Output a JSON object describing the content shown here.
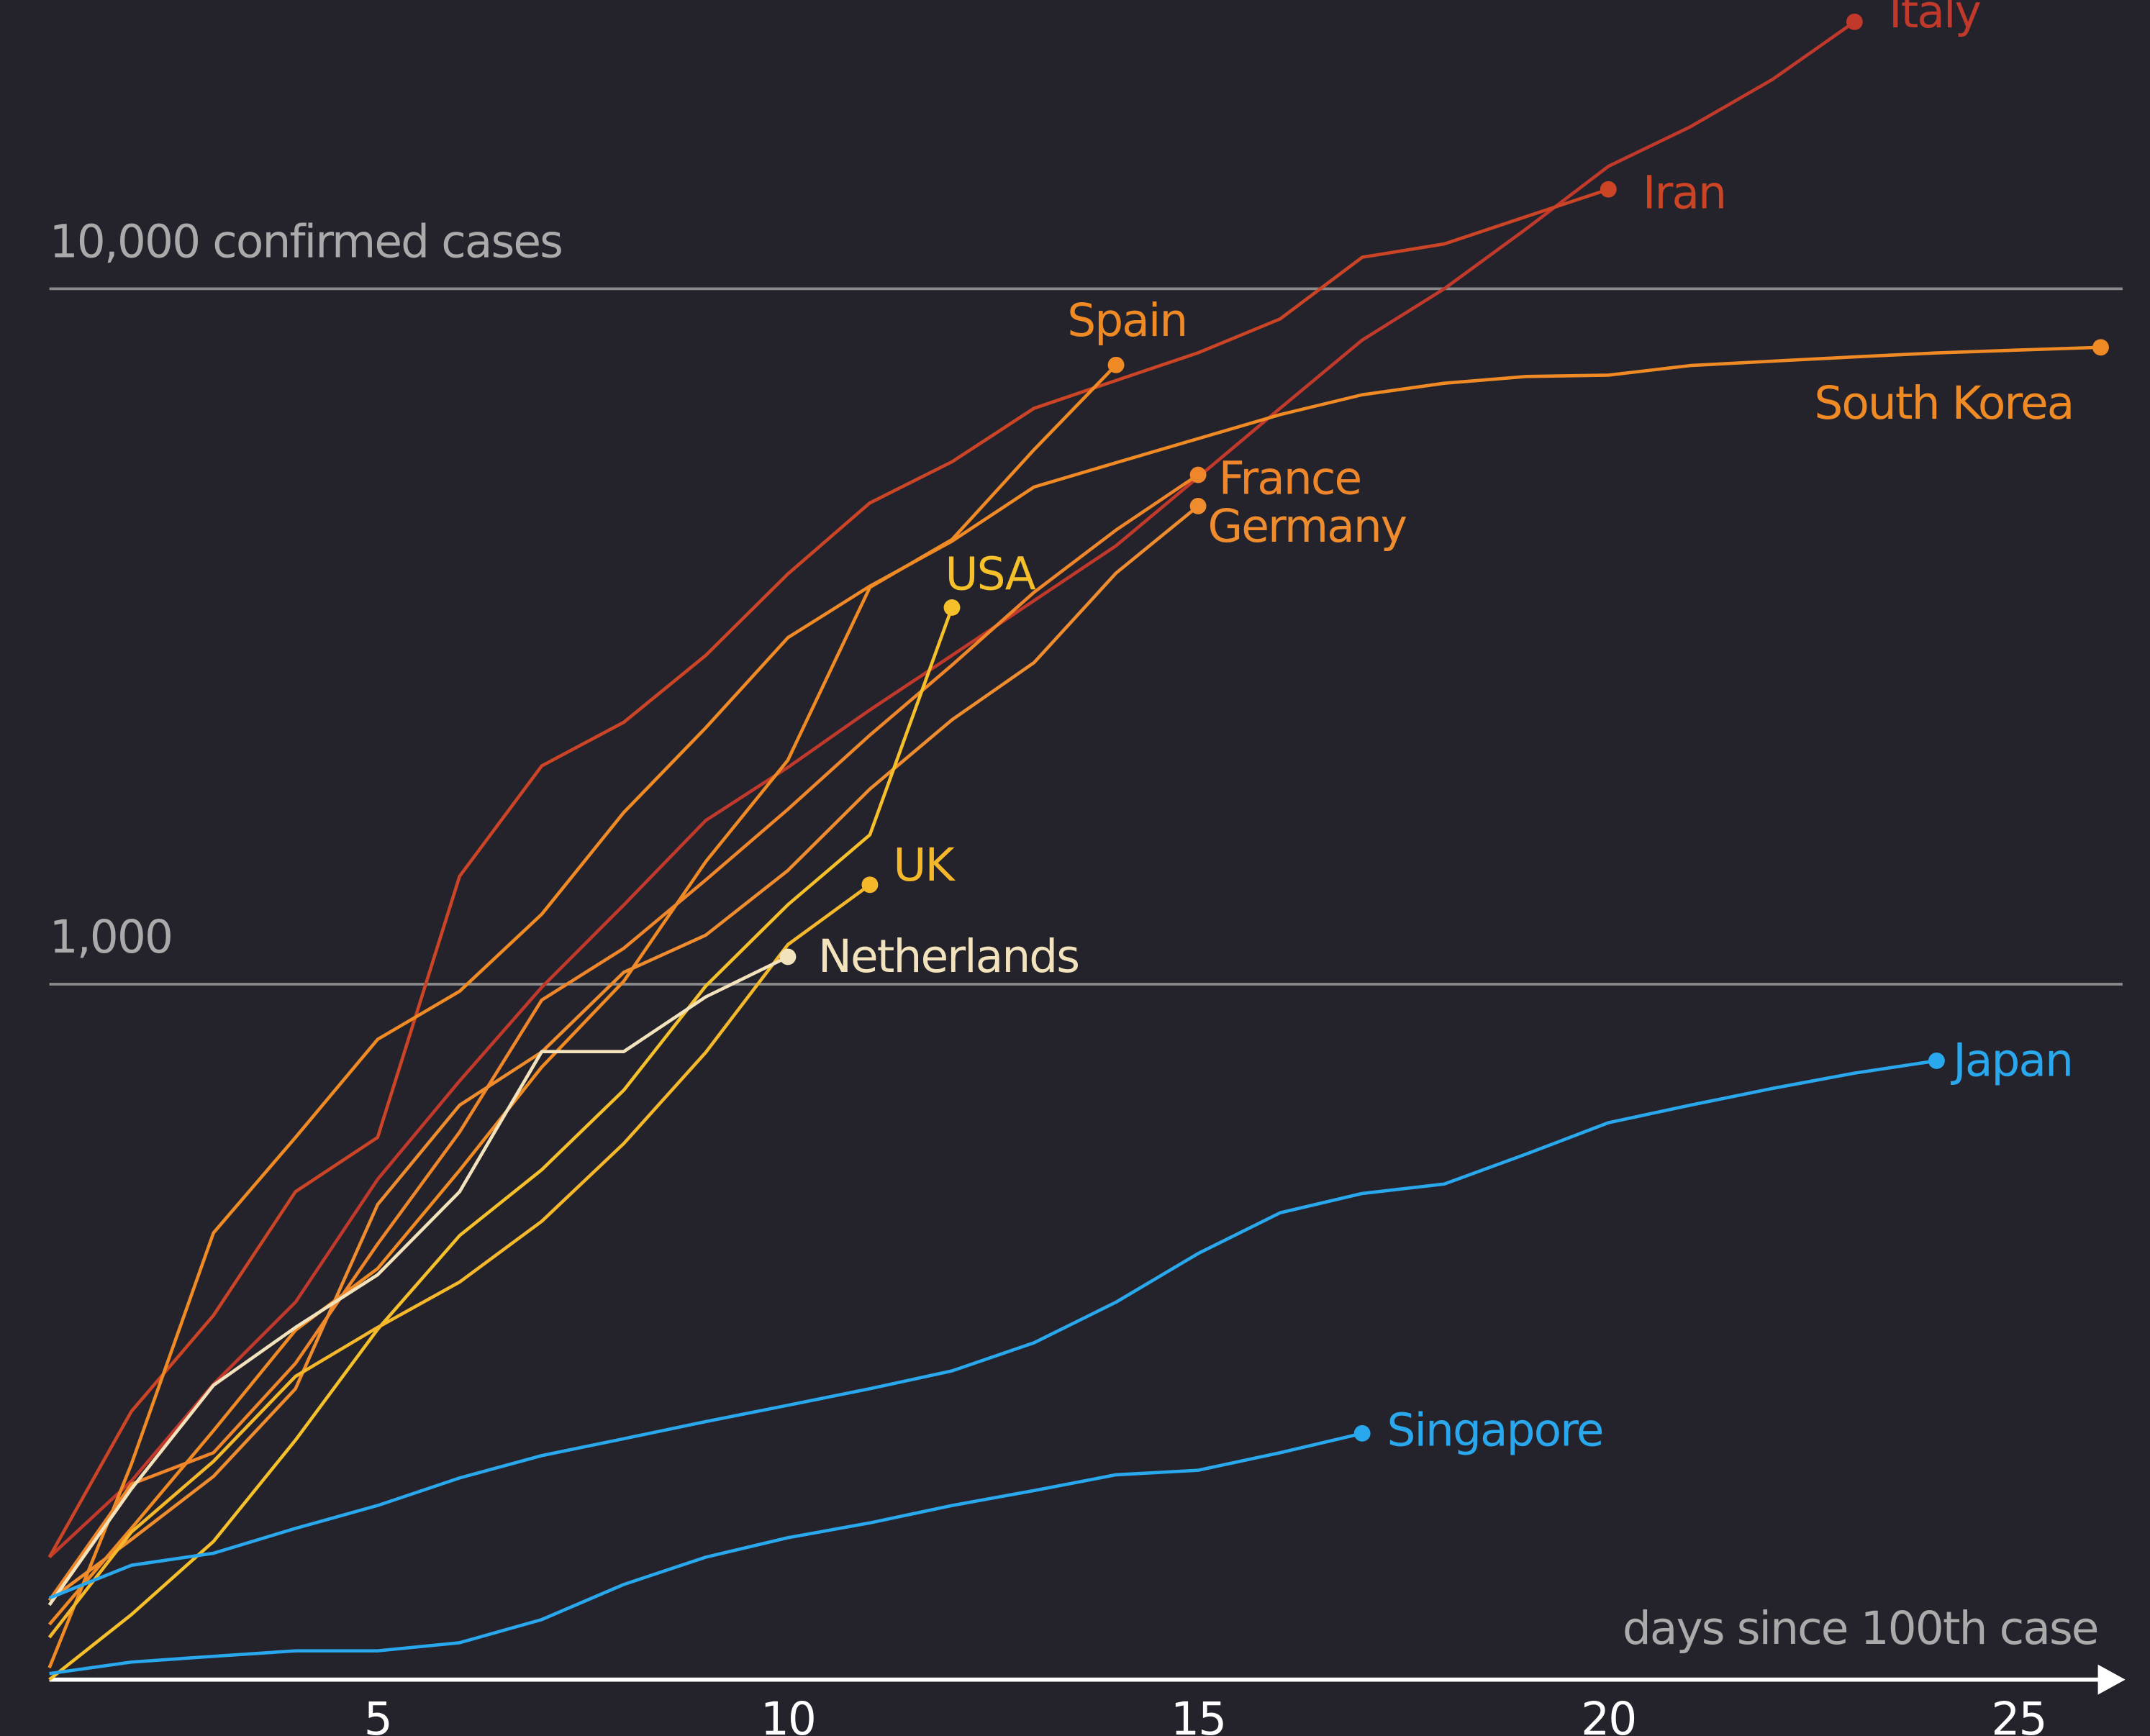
{
  "chart_data": {
    "type": "line",
    "xlabel": "days since 100th case",
    "x": [
      1,
      2,
      3,
      4,
      5,
      6,
      7,
      8,
      9,
      10,
      11,
      12,
      13,
      14,
      15,
      16,
      17,
      18,
      19,
      20,
      21,
      22,
      23,
      24,
      25,
      26
    ],
    "xlim": [
      1,
      26.3
    ],
    "xticks": [
      5,
      10,
      15,
      20,
      25
    ],
    "ylim": [
      100,
      26000
    ],
    "log_y": true,
    "yticks": [
      {
        "value": 1000,
        "label": "1,000"
      },
      {
        "value": 10000,
        "label": "10,000 confirmed cases"
      }
    ],
    "grid": true,
    "series": [
      {
        "name": "Italy",
        "color": "#c0392b",
        "values": [
          150,
          193,
          266,
          349,
          524,
          726,
          990,
          1300,
          1720,
          2050,
          2480,
          2970,
          3560,
          4270,
          5360,
          6730,
          8440,
          10000,
          12200,
          15000,
          17100,
          20000,
          24200,
          null,
          null,
          null
        ]
      },
      {
        "name": "Iran",
        "color": "#cc4426",
        "values": [
          150,
          243,
          334,
          503,
          602,
          1430,
          2060,
          2380,
          2970,
          3890,
          4920,
          5640,
          6730,
          7380,
          8090,
          9050,
          11100,
          11600,
          12700,
          13900,
          null,
          null,
          null,
          null,
          null,
          null
        ]
      },
      {
        "name": "Spain",
        "color": "#f08a24",
        "values": [
          120,
          165,
          228,
          318,
          390,
          540,
          760,
          1010,
          1500,
          2100,
          3720,
          4360,
          5870,
          7770,
          null,
          null,
          null,
          null,
          null,
          null,
          null,
          null,
          null,
          null,
          null,
          null
        ]
      },
      {
        "name": "South Korea",
        "color": "#f08a24",
        "values": [
          104,
          204,
          439,
          602,
          833,
          977,
          1261,
          1766,
          2337,
          3150,
          3736,
          4335,
          5186,
          5621,
          6088,
          6593,
          7041,
          7313,
          7478,
          7513,
          7755,
          7869,
          7979,
          8086,
          8162,
          8236
        ]
      },
      {
        "name": "France",
        "color": "#f0862a",
        "values": [
          130,
          191,
          212,
          285,
          423,
          613,
          949,
          1126,
          1412,
          1784,
          2281,
          2876,
          3661,
          4499,
          5400,
          null,
          null,
          null,
          null,
          null,
          null,
          null,
          null,
          null,
          null,
          null
        ]
      },
      {
        "name": "Germany",
        "color": "#ef8c2e",
        "values": [
          130,
          159,
          196,
          262,
          482,
          670,
          799,
          1040,
          1176,
          1457,
          1908,
          2400,
          2900,
          3900,
          4870,
          null,
          null,
          null,
          null,
          null,
          null,
          null,
          null,
          null,
          null,
          null
        ]
      },
      {
        "name": "USA",
        "color": "#f5c02a",
        "values": [
          100,
          124,
          158,
          221,
          319,
          435,
          541,
          704,
          994,
          1301,
          1640,
          3480,
          null,
          null,
          null,
          null,
          null,
          null,
          null,
          null,
          null,
          null,
          null,
          null,
          null,
          null
        ]
      },
      {
        "name": "UK",
        "color": "#f5b82a",
        "values": [
          115,
          163,
          206,
          273,
          321,
          373,
          456,
          590,
          798,
          1140,
          1390,
          null,
          null,
          null,
          null,
          null,
          null,
          null,
          null,
          null,
          null,
          null,
          null,
          null,
          null,
          null
        ]
      },
      {
        "name": "Netherlands",
        "color": "#f3e3bd",
        "values": [
          128,
          188,
          265,
          321,
          382,
          503,
          800,
          800,
          959,
          1095,
          null,
          null,
          null,
          null,
          null,
          null,
          null,
          null,
          null,
          null,
          null,
          null,
          null,
          null,
          null,
          null
        ]
      },
      {
        "name": "Japan",
        "color": "#29a8ee",
        "values": [
          131,
          146,
          152,
          165,
          178,
          195,
          210,
          222,
          235,
          248,
          262,
          278,
          305,
          349,
          410,
          469,
          500,
          516,
          570,
          632,
          670,
          708,
          745,
          776,
          null,
          null
        ]
      },
      {
        "name": "Singapore",
        "color": "#29a8ee",
        "values": [
          102,
          106,
          108,
          110,
          110,
          113,
          122,
          137,
          150,
          160,
          168,
          178,
          187,
          197,
          200,
          212,
          226,
          null,
          null,
          null,
          null,
          null,
          null,
          null,
          null,
          null
        ]
      }
    ]
  }
}
